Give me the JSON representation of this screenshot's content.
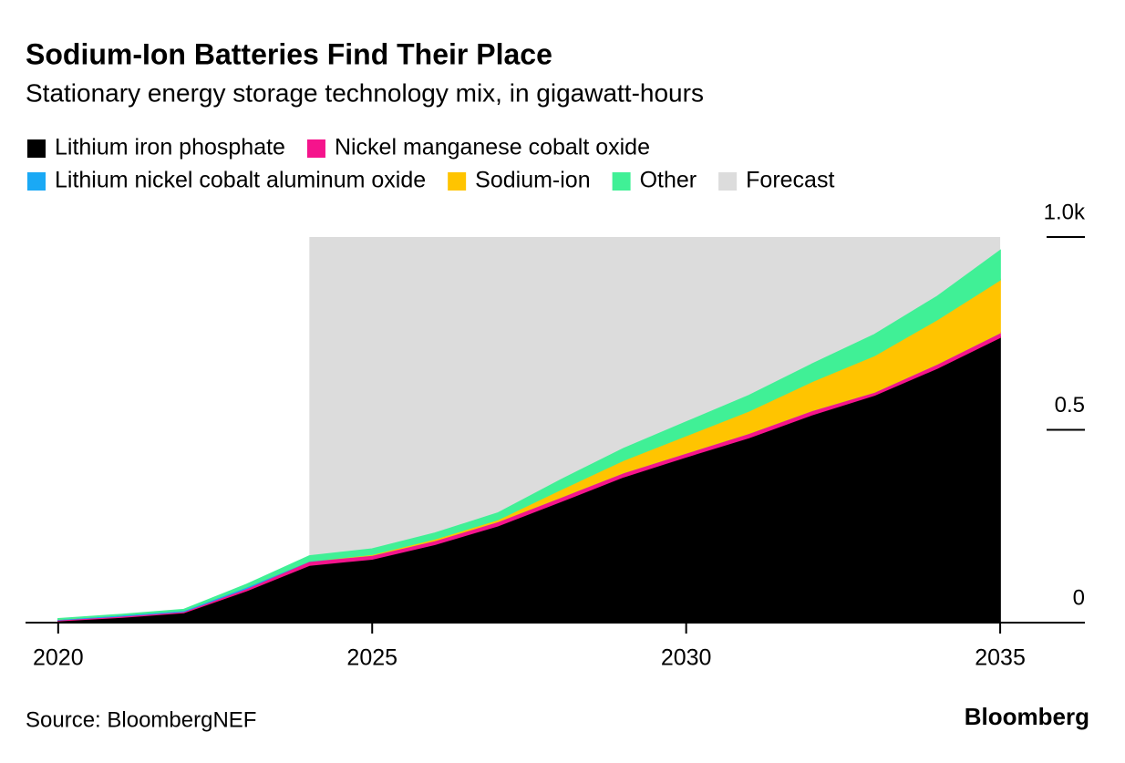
{
  "chart_data": {
    "type": "stacked_area",
    "title": "Sodium-Ion Batteries Find Their Place",
    "subtitle": "Stationary energy storage technology mix, in gigawatt-hours",
    "source": "Source: BloombergNEF",
    "brand": "Bloomberg",
    "x": [
      2020,
      2021,
      2022,
      2023,
      2024,
      2025,
      2026,
      2027,
      2028,
      2029,
      2030,
      2031,
      2032,
      2033,
      2034,
      2035
    ],
    "xlim": [
      2019.48,
      2036.32
    ],
    "xticks": [
      2020,
      2025,
      2030,
      2035
    ],
    "ylim": [
      0,
      1
    ],
    "yticks": [
      0,
      0.5,
      {
        "value": 1,
        "label": "1.0k"
      }
    ],
    "forecast": {
      "label": "Forecast",
      "start": 2024,
      "end": 2035,
      "color": "#dcdcdc"
    },
    "series": [
      {
        "name": "Lithium iron phosphate",
        "color": "#000000",
        "values": [
          0.005,
          0.014,
          0.026,
          0.083,
          0.149,
          0.165,
          0.203,
          0.251,
          0.314,
          0.378,
          0.43,
          0.48,
          0.539,
          0.59,
          0.66,
          0.74
        ]
      },
      {
        "name": "Nickel manganese cobalt oxide",
        "color": "#f5148c",
        "values": [
          0.002,
          0.003,
          0.003,
          0.006,
          0.01,
          0.01,
          0.01,
          0.011,
          0.011,
          0.011,
          0.01,
          0.011,
          0.011,
          0.008,
          0.011,
          0.012
        ]
      },
      {
        "name": "Lithium nickel cobalt aluminum oxide",
        "color": "#1aa9f5",
        "values": [
          0.002,
          0.003,
          0.003,
          0.004,
          0.001,
          0,
          0,
          0,
          0,
          0,
          0,
          0,
          0,
          0,
          0,
          0
        ]
      },
      {
        "name": "Sodium-ion",
        "color": "#ffc400",
        "values": [
          0,
          0,
          0,
          0,
          0,
          0.002,
          0.004,
          0.005,
          0.02,
          0.032,
          0.045,
          0.058,
          0.075,
          0.095,
          0.115,
          0.137
        ]
      },
      {
        "name": "Other",
        "color": "#40f096",
        "values": [
          0.001,
          0.001,
          0.002,
          0.006,
          0.013,
          0.014,
          0.015,
          0.017,
          0.025,
          0.03,
          0.035,
          0.04,
          0.045,
          0.054,
          0.06,
          0.076
        ]
      }
    ]
  }
}
